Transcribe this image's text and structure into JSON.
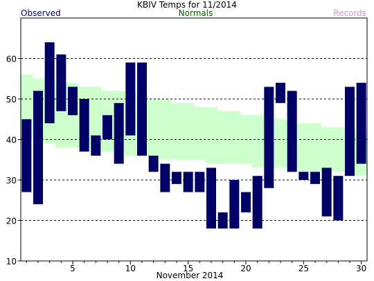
{
  "chart_data": {
    "type": "bar",
    "title": "KBIV Temps for 11/2014",
    "xlabel": "November 2014",
    "ylabel": "",
    "legend": [
      "Observed",
      "Normals",
      "Records"
    ],
    "legend_colors": {
      "observed": "#000066",
      "normals": "#006600",
      "records": "#cc99cc"
    },
    "colors": {
      "observed_bar": "#000066",
      "normal_band": "#ccffcc",
      "grid": "#000000"
    },
    "ylim": [
      10,
      70
    ],
    "xlim": [
      0.5,
      30.5
    ],
    "y_ticks": [
      10,
      20,
      30,
      40,
      50,
      60
    ],
    "x_ticks": [
      5,
      10,
      15,
      20,
      25,
      30
    ],
    "grid": "horizontal dashed at 20, 30, 40, 50, 60",
    "days": [
      1,
      2,
      3,
      4,
      5,
      6,
      7,
      8,
      9,
      10,
      11,
      12,
      13,
      14,
      15,
      16,
      17,
      18,
      19,
      20,
      21,
      22,
      23,
      24,
      25,
      26,
      27,
      28,
      29,
      30
    ],
    "series": [
      {
        "name": "Observed",
        "highs": [
          45,
          52,
          64,
          61,
          53,
          50,
          41,
          46,
          49,
          59,
          59,
          36,
          34,
          32,
          32,
          32,
          33,
          22,
          30,
          27,
          31,
          53,
          54,
          52,
          32,
          32,
          33,
          31,
          53,
          54
        ],
        "lows": [
          27,
          24,
          44,
          47,
          46,
          37,
          36,
          40,
          34,
          41,
          36,
          32,
          27,
          29,
          27,
          27,
          18,
          18,
          18,
          22,
          18,
          28,
          49,
          32,
          30,
          29,
          21,
          20,
          31,
          34
        ]
      },
      {
        "name": "Normals",
        "highs": [
          56,
          55,
          55,
          54,
          54,
          53,
          53,
          52,
          52,
          52,
          51,
          50,
          50,
          49,
          49,
          48,
          48,
          47,
          47,
          46,
          46,
          45,
          45,
          44,
          44,
          44,
          43,
          43,
          43,
          42
        ],
        "lows": [
          40,
          40,
          39,
          38,
          38,
          38,
          37,
          37,
          37,
          36,
          36,
          36,
          35,
          35,
          35,
          35,
          34,
          34,
          34,
          34,
          33,
          33,
          33,
          33,
          32,
          32,
          32,
          32,
          31,
          31
        ]
      }
    ]
  }
}
